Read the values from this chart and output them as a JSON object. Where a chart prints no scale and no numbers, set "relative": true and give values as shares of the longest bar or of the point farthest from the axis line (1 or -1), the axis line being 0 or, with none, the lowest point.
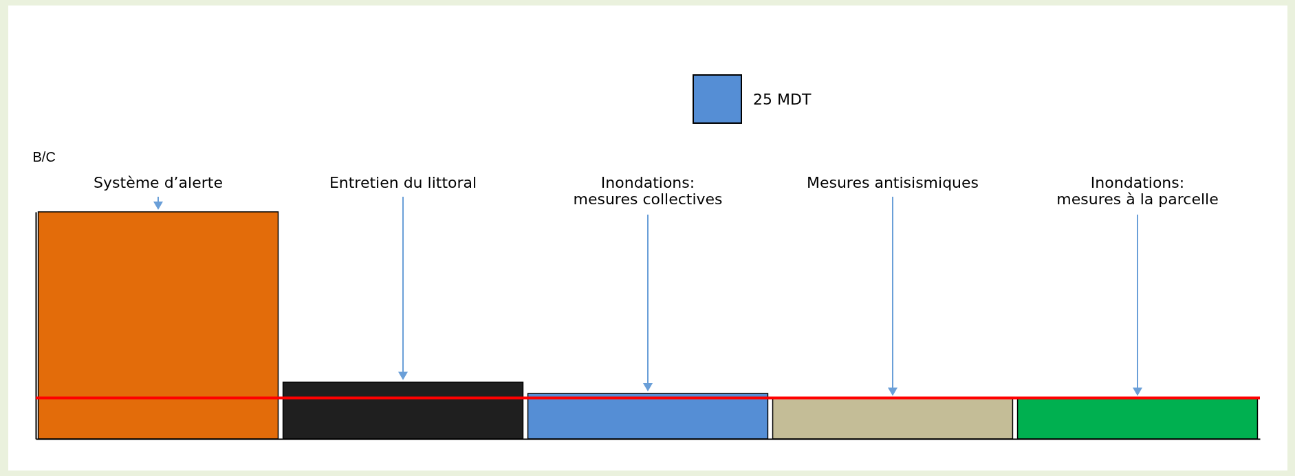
{
  "chart_data": {
    "type": "bar",
    "relative": true,
    "ylabel": "B/C",
    "categories": [
      "Système d’alerte",
      "Entretien du littoral",
      "Inondations:\nmesures collectives",
      "Mesures antisismiques",
      "Inondations:\nmesures à la parcelle"
    ],
    "colors": [
      "#e36c0a",
      "#1f1f1f",
      "#558ed5",
      "#c4bd97",
      "#00b050"
    ],
    "values": [
      1,
      0.25,
      0.2,
      0.18,
      0.18
    ],
    "ref_lines": [
      {
        "axis": "y",
        "value": 0.18,
        "color": "#ff0000"
      }
    ],
    "annotations": [
      "25 MDT"
    ]
  }
}
